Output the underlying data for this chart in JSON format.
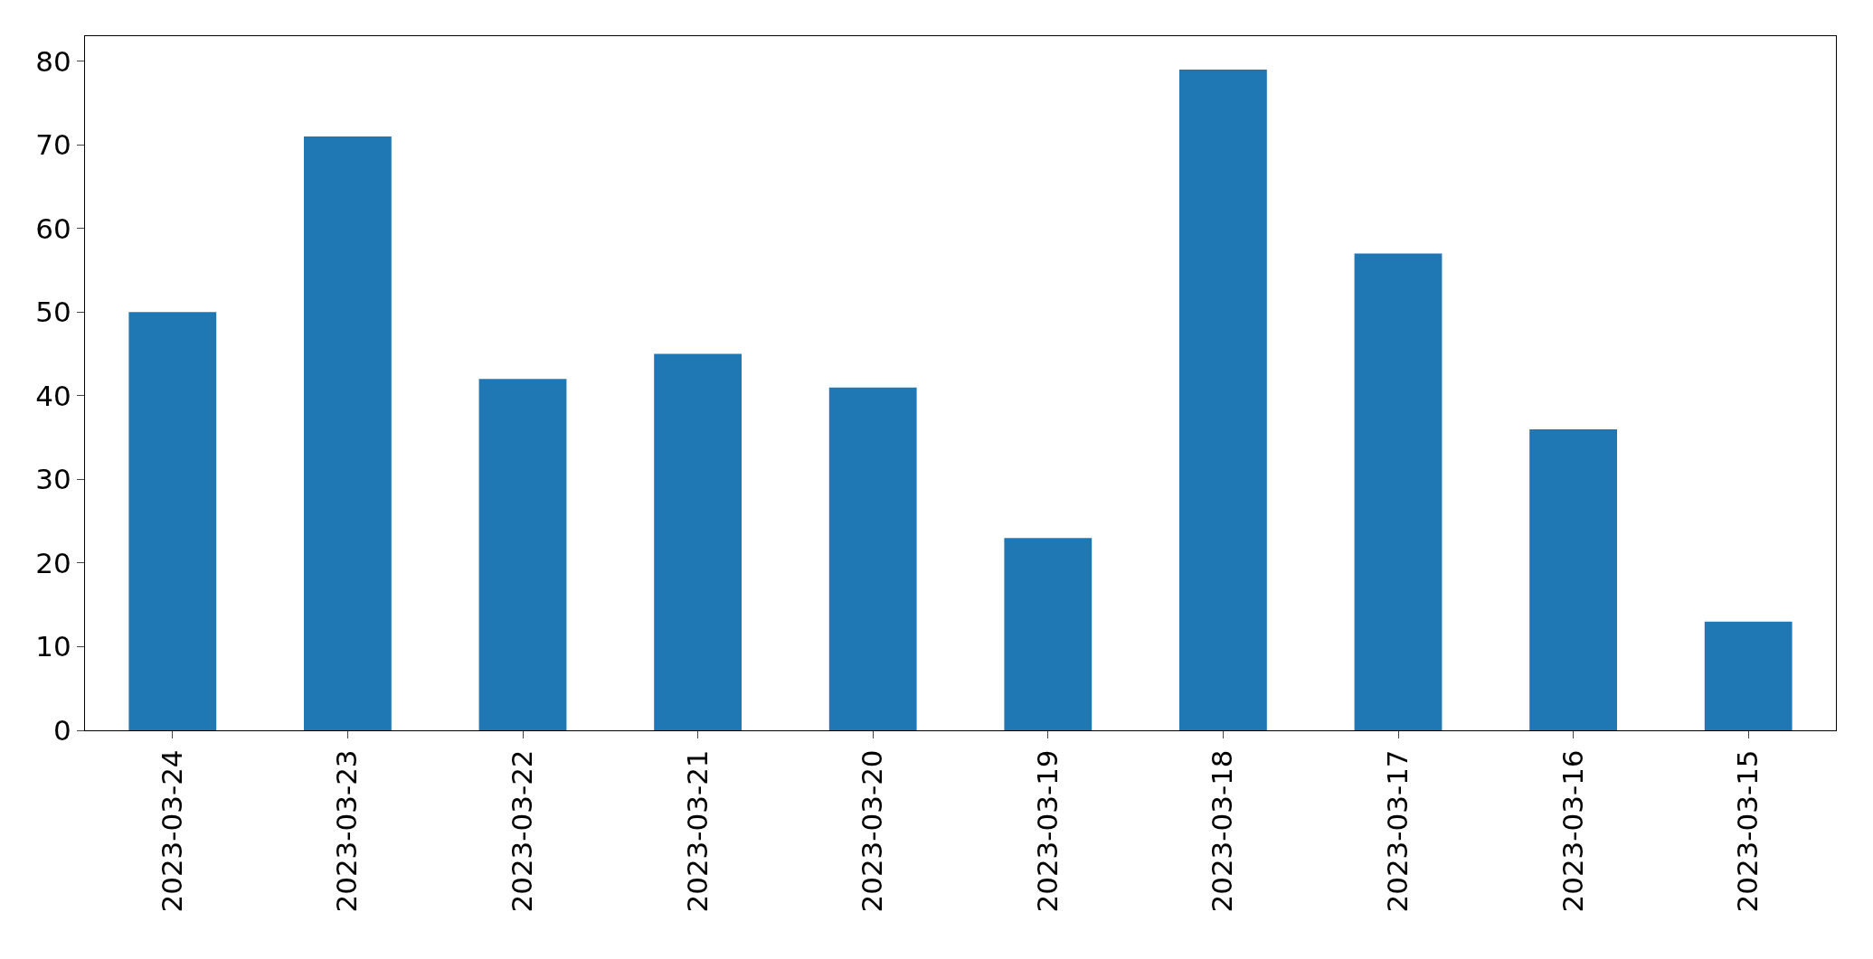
{
  "chart_data": {
    "type": "bar",
    "categories": [
      "2023-03-24",
      "2023-03-23",
      "2023-03-22",
      "2023-03-21",
      "2023-03-20",
      "2023-03-19",
      "2023-03-18",
      "2023-03-17",
      "2023-03-16",
      "2023-03-15"
    ],
    "values": [
      50,
      71,
      42,
      45,
      41,
      23,
      79,
      57,
      36,
      13
    ],
    "color": "#1f77b4",
    "ylim": [
      0,
      83
    ],
    "yticks": [
      0,
      10,
      20,
      30,
      40,
      50,
      60,
      70,
      80
    ]
  }
}
